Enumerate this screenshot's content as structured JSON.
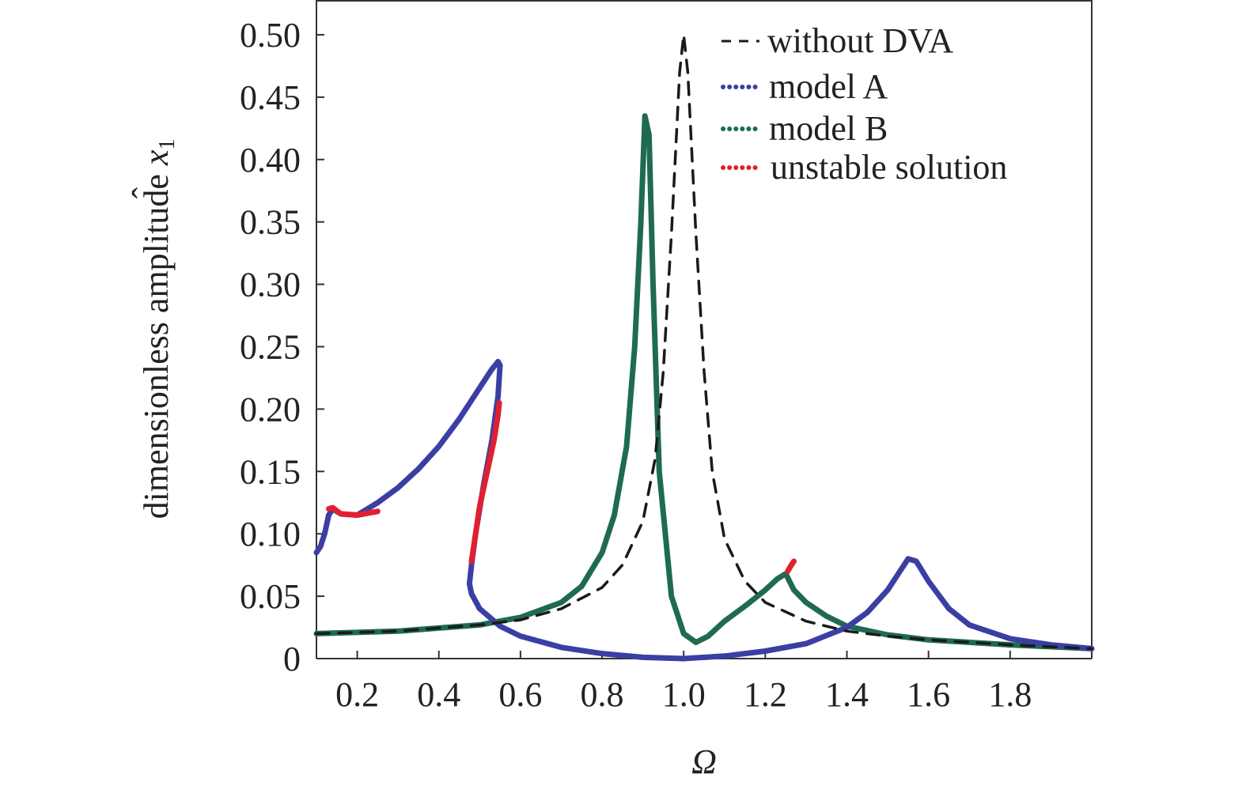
{
  "chart_data": {
    "type": "line",
    "title": "",
    "xlabel": "Ω",
    "ylabel_main": "dimensionless amplitude ",
    "ylabel_symbol": "x",
    "ylabel_subscript": "1",
    "xlim": [
      0.1,
      2.0
    ],
    "ylim": [
      0,
      0.52
    ],
    "x_ticks": [
      0.2,
      0.4,
      0.6,
      0.8,
      1.0,
      1.2,
      1.4,
      1.6,
      1.8
    ],
    "x_tick_labels": [
      "0.2",
      "0.4",
      "0.6",
      "0.8",
      "1.0",
      "1.2",
      "1.4",
      "1.6",
      "1.8"
    ],
    "y_ticks": [
      0,
      0.05,
      0.1,
      0.15,
      0.2,
      0.25,
      0.3,
      0.35,
      0.4,
      0.45,
      0.5
    ],
    "y_tick_labels": [
      "0",
      "0.05",
      "0.10",
      "0.15",
      "0.20",
      "0.25",
      "0.30",
      "0.35",
      "0.40",
      "0.45",
      "0.50"
    ],
    "grid": false,
    "legend_position": "top-right",
    "colors": {
      "without_dva": "#1a1a1a",
      "model_a": "#3b3fa3",
      "model_b": "#1e6b52",
      "unstable": "#e02030",
      "axis": "#333333"
    },
    "series": [
      {
        "name": "without DVA",
        "style": "dashed",
        "color": "#1a1a1a",
        "x": [
          0.1,
          0.3,
          0.5,
          0.6,
          0.7,
          0.8,
          0.85,
          0.9,
          0.93,
          0.95,
          0.97,
          0.99,
          1.0,
          1.01,
          1.03,
          1.05,
          1.07,
          1.1,
          1.15,
          1.2,
          1.3,
          1.4,
          1.5,
          1.6,
          1.8,
          2.0
        ],
        "y": [
          0.02,
          0.022,
          0.027,
          0.031,
          0.04,
          0.057,
          0.075,
          0.11,
          0.16,
          0.23,
          0.34,
          0.47,
          0.5,
          0.47,
          0.34,
          0.23,
          0.15,
          0.096,
          0.062,
          0.045,
          0.03,
          0.022,
          0.018,
          0.015,
          0.011,
          0.008
        ]
      },
      {
        "name": "model A",
        "style": "solid",
        "color": "#3b3fa3",
        "x": [
          0.1,
          0.11,
          0.12,
          0.13,
          0.14,
          0.16,
          0.2,
          0.25,
          0.3,
          0.35,
          0.4,
          0.45,
          0.5,
          0.53,
          0.545,
          0.55,
          0.545,
          0.53,
          0.51,
          0.49,
          0.48,
          0.475,
          0.48,
          0.5,
          0.55,
          0.6,
          0.7,
          0.8,
          0.9,
          1.0,
          1.1,
          1.2,
          1.3,
          1.4,
          1.45,
          1.5,
          1.53,
          1.55,
          1.57,
          1.6,
          1.65,
          1.7,
          1.8,
          1.9,
          2.0
        ],
        "y": [
          0.085,
          0.09,
          0.1,
          0.115,
          0.12,
          0.116,
          0.115,
          0.125,
          0.137,
          0.152,
          0.17,
          0.192,
          0.217,
          0.232,
          0.238,
          0.235,
          0.21,
          0.175,
          0.14,
          0.1,
          0.075,
          0.06,
          0.052,
          0.04,
          0.026,
          0.018,
          0.009,
          0.004,
          0.001,
          0.0,
          0.002,
          0.006,
          0.012,
          0.025,
          0.037,
          0.055,
          0.07,
          0.08,
          0.078,
          0.062,
          0.04,
          0.027,
          0.016,
          0.011,
          0.008
        ]
      },
      {
        "name": "model B",
        "style": "solid",
        "color": "#1e6b52",
        "x": [
          0.1,
          0.3,
          0.5,
          0.6,
          0.7,
          0.75,
          0.8,
          0.83,
          0.86,
          0.88,
          0.895,
          0.905,
          0.915,
          0.925,
          0.94,
          0.97,
          1.0,
          1.03,
          1.06,
          1.1,
          1.15,
          1.2,
          1.23,
          1.25,
          1.27,
          1.3,
          1.35,
          1.4,
          1.5,
          1.6,
          1.8,
          2.0
        ],
        "y": [
          0.02,
          0.022,
          0.027,
          0.033,
          0.045,
          0.058,
          0.085,
          0.115,
          0.17,
          0.25,
          0.35,
          0.435,
          0.42,
          0.3,
          0.15,
          0.05,
          0.02,
          0.013,
          0.018,
          0.03,
          0.042,
          0.055,
          0.064,
          0.068,
          0.055,
          0.045,
          0.034,
          0.026,
          0.019,
          0.015,
          0.011,
          0.008
        ]
      },
      {
        "name": "unstable solution",
        "style": "solid",
        "color": "#e02030",
        "segments": [
          {
            "x": [
              0.13,
              0.14,
              0.16,
              0.2,
              0.25
            ],
            "y": [
              0.12,
              0.121,
              0.116,
              0.115,
              0.118
            ]
          },
          {
            "x": [
              0.548,
              0.545,
              0.535,
              0.52,
              0.5,
              0.49,
              0.48
            ],
            "y": [
              0.205,
              0.195,
              0.175,
              0.152,
              0.122,
              0.1,
              0.078
            ]
          },
          {
            "x": [
              1.255,
              1.262,
              1.27
            ],
            "y": [
              0.07,
              0.074,
              0.078
            ]
          }
        ]
      }
    ]
  },
  "legend": {
    "items": [
      {
        "label": "without DVA",
        "marker": "dashed"
      },
      {
        "label": "model A",
        "marker": "dots",
        "color": "#3b3fa3"
      },
      {
        "label": "model B",
        "marker": "dots",
        "color": "#1e6b52"
      },
      {
        "label": "unstable solution",
        "marker": "dots",
        "color": "#e02030"
      }
    ]
  }
}
